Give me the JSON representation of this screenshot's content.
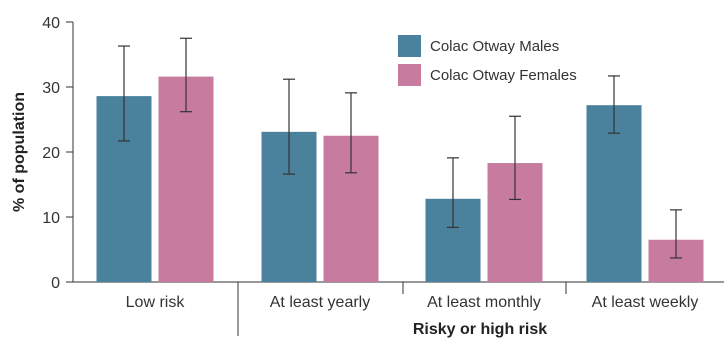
{
  "chart_data": {
    "type": "bar",
    "title": "",
    "ylabel": "% of population",
    "xgroup_label": "Risky or high risk",
    "ylim": [
      0,
      40
    ],
    "yticks": [
      0,
      10,
      20,
      30,
      40
    ],
    "categories": [
      "Low risk",
      "At least yearly",
      "At least monthly",
      "At least weekly"
    ],
    "grid": false,
    "legend_position": "top-right",
    "series": [
      {
        "name": "Colac Otway Males",
        "color": "#4a829e",
        "values": [
          28.6,
          23.1,
          12.8,
          27.2
        ],
        "err_low": [
          21.7,
          16.6,
          8.4,
          22.9
        ],
        "err_high": [
          36.3,
          31.2,
          19.1,
          31.7
        ]
      },
      {
        "name": "Colac Otway Females",
        "color": "#c77c9f",
        "values": [
          31.6,
          22.5,
          18.3,
          6.5
        ],
        "err_low": [
          26.2,
          16.8,
          12.7,
          3.7
        ],
        "err_high": [
          37.5,
          29.1,
          25.5,
          11.1
        ]
      }
    ]
  }
}
